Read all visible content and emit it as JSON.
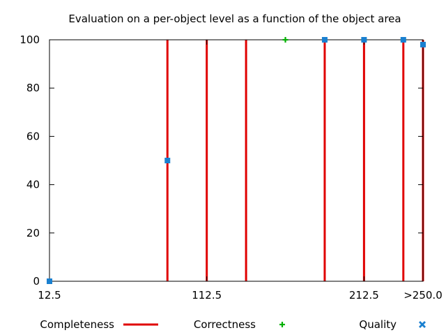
{
  "chart_data": {
    "type": "line",
    "title": "Evaluation on a per-object level as a function of the object area",
    "xlabel": "",
    "ylabel": "",
    "xlim": [
      12.5,
      250.0
    ],
    "ylim": [
      0,
      100
    ],
    "x_ticks": [
      {
        "value": 12.5,
        "label": "12.5"
      },
      {
        "value": 112.5,
        "label": "112.5"
      },
      {
        "value": 212.5,
        "label": "212.5"
      },
      {
        "value": 250.0,
        "label": ">250.0"
      }
    ],
    "y_ticks": [
      0,
      20,
      40,
      60,
      80,
      100
    ],
    "grid": false,
    "legend_position": "bottom",
    "series": [
      {
        "name": "Completeness",
        "style": "impulses",
        "color": "#e00000",
        "points": [
          {
            "x": 12.5,
            "y": 0
          },
          {
            "x": 87.5,
            "y": 100
          },
          {
            "x": 112.5,
            "y": 100
          },
          {
            "x": 137.5,
            "y": 100
          },
          {
            "x": 187.5,
            "y": 100
          },
          {
            "x": 212.5,
            "y": 100
          },
          {
            "x": 237.5,
            "y": 100
          },
          {
            "x": 250.0,
            "y": 100
          }
        ]
      },
      {
        "name": "Correctness",
        "style": "plus",
        "color": "#00b000",
        "points": [
          {
            "x": 162.5,
            "y": 100
          },
          {
            "x": 187.5,
            "y": 100
          },
          {
            "x": 212.5,
            "y": 100
          },
          {
            "x": 237.5,
            "y": 100
          }
        ]
      },
      {
        "name": "Quality",
        "style": "square",
        "color": "#1a80d0",
        "points": [
          {
            "x": 12.5,
            "y": 0
          },
          {
            "x": 87.5,
            "y": 50
          },
          {
            "x": 187.5,
            "y": 100
          },
          {
            "x": 212.5,
            "y": 100
          },
          {
            "x": 237.5,
            "y": 100
          },
          {
            "x": 250.0,
            "y": 98
          }
        ]
      }
    ]
  }
}
